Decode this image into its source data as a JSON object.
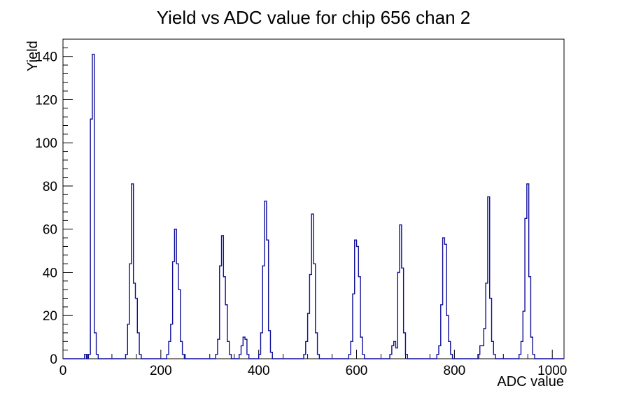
{
  "title": "Yield vs ADC value for chip 656 chan 2",
  "chart_data": {
    "type": "bar",
    "subtype": "step-histogram",
    "title": "Yield vs ADC value for chip 656 chan 2",
    "xlabel": "ADC value",
    "ylabel": "Yield",
    "xlim": [
      0,
      1024
    ],
    "ylim": [
      0,
      148
    ],
    "x_major_ticks": [
      0,
      200,
      400,
      600,
      800,
      1000
    ],
    "x_minor_step": 50,
    "y_major_ticks": [
      0,
      20,
      40,
      60,
      80,
      100,
      120,
      140
    ],
    "y_minor_step": 4,
    "bin_width": 4,
    "grid": false,
    "legend": false,
    "line_color": "#0f0f99",
    "axis_color": "#000000",
    "background_color": "#ffffff",
    "clusters": [
      {
        "start": 44,
        "values": [
          2,
          0,
          2,
          111,
          141,
          12,
          2
        ]
      },
      {
        "start": 128,
        "values": [
          2,
          16,
          44,
          81,
          35,
          28,
          12,
          2
        ]
      },
      {
        "start": 212,
        "values": [
          2,
          8,
          16,
          45,
          60,
          44,
          32,
          8,
          2
        ]
      },
      {
        "start": 312,
        "values": [
          2,
          9,
          43,
          57,
          38,
          25,
          8,
          2
        ]
      },
      {
        "start": 360,
        "values": [
          2,
          6,
          10,
          9,
          2
        ]
      },
      {
        "start": 400,
        "values": [
          2,
          12,
          43,
          73,
          55,
          13,
          3
        ]
      },
      {
        "start": 492,
        "values": [
          2,
          8,
          21,
          39,
          67,
          44,
          12,
          2
        ]
      },
      {
        "start": 584,
        "values": [
          2,
          8,
          30,
          55,
          52,
          38,
          10,
          2
        ]
      },
      {
        "start": 668,
        "values": [
          2,
          6,
          8,
          5,
          40,
          62,
          42,
          12,
          2
        ]
      },
      {
        "start": 764,
        "values": [
          2,
          6,
          25,
          56,
          53,
          20,
          8,
          2
        ]
      },
      {
        "start": 848,
        "values": [
          2,
          6,
          6,
          14,
          35,
          75,
          28,
          8,
          2
        ]
      },
      {
        "start": 932,
        "values": [
          2,
          8,
          22,
          65,
          81,
          38,
          10,
          2
        ]
      }
    ]
  }
}
